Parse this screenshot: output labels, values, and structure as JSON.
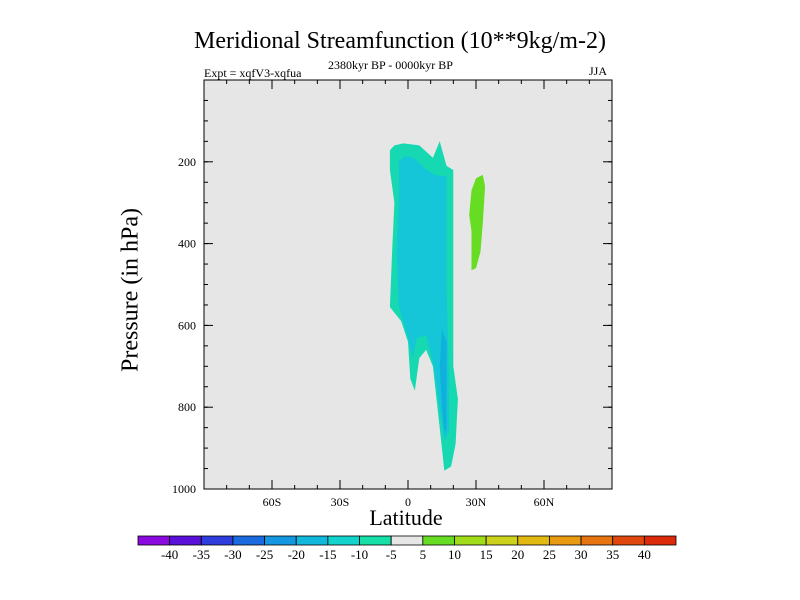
{
  "title": "Meridional Streamfunction (10**9kg/m-2)",
  "subtitle_left": "Expt = xqfV3-xqfua",
  "subtitle_center": "2380kyr BP - 0000kyr BP",
  "subtitle_right": "JJA",
  "chart_data": {
    "type": "contour",
    "title": "Meridional Streamfunction (10**9kg/m-2)",
    "xlabel": "Latitude",
    "ylabel": "Pressure (in hPa)",
    "xlim": [
      -90,
      90
    ],
    "ylim": [
      1000,
      0
    ],
    "x_ticks": [
      {
        "value": -60,
        "label": "60S"
      },
      {
        "value": -30,
        "label": "30S"
      },
      {
        "value": 0,
        "label": "0"
      },
      {
        "value": 30,
        "label": "30N"
      },
      {
        "value": 60,
        "label": "60N"
      }
    ],
    "y_ticks": [
      {
        "value": 200,
        "label": "200"
      },
      {
        "value": 400,
        "label": "400"
      },
      {
        "value": 600,
        "label": "600"
      },
      {
        "value": 800,
        "label": "800"
      },
      {
        "value": 1000,
        "label": "1000"
      }
    ],
    "background_color": "#e6e6e6",
    "regions": [
      {
        "name": "negative-cell-outer",
        "level": "-10 to -5",
        "color": "#16d9b2",
        "points": [
          [
            -8,
            172
          ],
          [
            -6,
            160
          ],
          [
            -2,
            155
          ],
          [
            5,
            160
          ],
          [
            11,
            190
          ],
          [
            14,
            150
          ],
          [
            17,
            210
          ],
          [
            20,
            220
          ],
          [
            20,
            380
          ],
          [
            20,
            700
          ],
          [
            22,
            780
          ],
          [
            21,
            890
          ],
          [
            19,
            945
          ],
          [
            16,
            955
          ],
          [
            14,
            850
          ],
          [
            11,
            700
          ],
          [
            8,
            660
          ],
          [
            5,
            680
          ],
          [
            3,
            760
          ],
          [
            1,
            730
          ],
          [
            0,
            640
          ],
          [
            -3,
            590
          ],
          [
            -8,
            555
          ],
          [
            -7,
            420
          ],
          [
            -6,
            300
          ],
          [
            -8,
            220
          ]
        ]
      },
      {
        "name": "negative-cell-inner",
        "level": "-15 to -10",
        "color": "#14c6d8",
        "points": [
          [
            -4,
            200
          ],
          [
            -1,
            185
          ],
          [
            3,
            192
          ],
          [
            7,
            215
          ],
          [
            11,
            230
          ],
          [
            15,
            235
          ],
          [
            17,
            235
          ],
          [
            17,
            500
          ],
          [
            18,
            720
          ],
          [
            18,
            860
          ],
          [
            16,
            880
          ],
          [
            14,
            800
          ],
          [
            11,
            690
          ],
          [
            8,
            625
          ],
          [
            4,
            630
          ],
          [
            2,
            680
          ],
          [
            0,
            630
          ],
          [
            -4,
            555
          ],
          [
            -5,
            420
          ],
          [
            -4,
            300
          ]
        ]
      },
      {
        "name": "negative-cell-core",
        "level": "-20 to -15",
        "color": "#0fb0da",
        "points": [
          [
            15,
            610
          ],
          [
            17,
            640
          ],
          [
            17,
            850
          ],
          [
            16,
            862
          ],
          [
            15,
            800
          ],
          [
            14,
            700
          ]
        ]
      },
      {
        "name": "positive-cell",
        "level": "5 to 10",
        "color": "#66dd22",
        "points": [
          [
            30,
            240
          ],
          [
            33,
            232
          ],
          [
            34,
            260
          ],
          [
            33,
            350
          ],
          [
            32,
            420
          ],
          [
            30,
            460
          ],
          [
            28,
            465
          ],
          [
            28,
            370
          ],
          [
            27,
            330
          ],
          [
            28,
            270
          ]
        ]
      }
    ],
    "colorbar": {
      "labels": [
        "-40",
        "-35",
        "-30",
        "-25",
        "-20",
        "-15",
        "-10",
        "-5",
        "5",
        "10",
        "15",
        "20",
        "25",
        "30",
        "35",
        "40"
      ],
      "colors": [
        "#8a0ae0",
        "#5a10d8",
        "#2e3ddc",
        "#1c6ae0",
        "#1596e0",
        "#12b7dc",
        "#12d4cc",
        "#16e0a8",
        "#e6e6e6",
        "#66dd22",
        "#a0dc1a",
        "#ccd21a",
        "#e2b812",
        "#e89a10",
        "#e67410",
        "#e0480e",
        "#dc2a0a"
      ]
    }
  }
}
